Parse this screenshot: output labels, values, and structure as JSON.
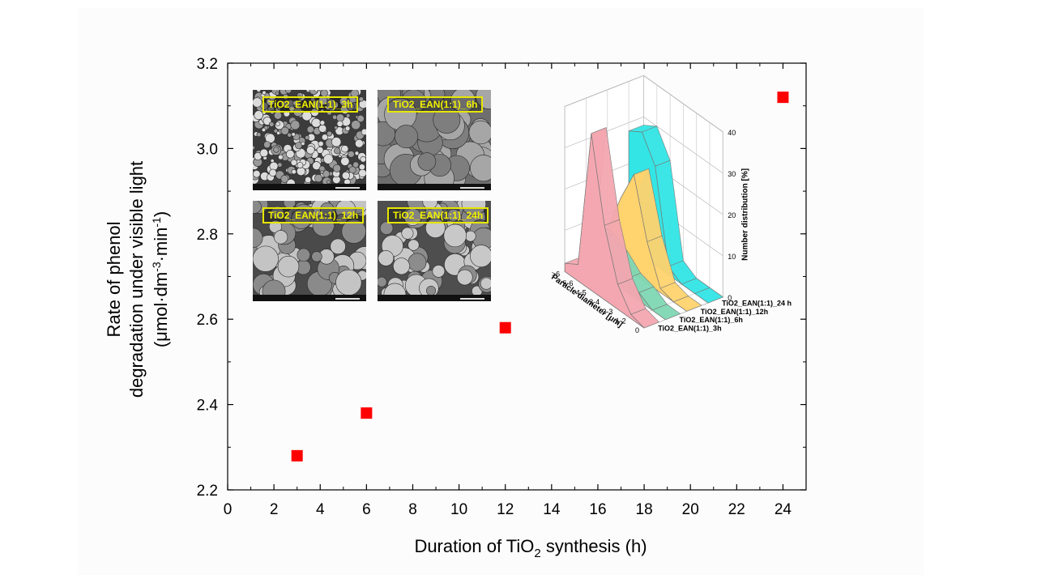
{
  "chart_data": [
    {
      "type": "scatter",
      "title": "",
      "xlabel": "Duration of TiO",
      "xlabel_sub": "2",
      "xlabel_tail": " synthesis (h)",
      "ylabel_line1": "Rate of phenol",
      "ylabel_line2": "degradation under visible light",
      "ylabel_line3_a": "(μmol·dm",
      "ylabel_line3_sup1": "-3",
      "ylabel_line3_b": "·min",
      "ylabel_line3_sup2": "-1",
      "ylabel_line3_c": ")",
      "xlim": [
        0,
        25
      ],
      "ylim": [
        2.2,
        3.2
      ],
      "xticks": [
        "0",
        "2",
        "4",
        "6",
        "8",
        "10",
        "12",
        "14",
        "16",
        "18",
        "20",
        "22",
        "24"
      ],
      "yticks": [
        "2.2",
        "2.4",
        "2.6",
        "2.8",
        "3.0",
        "3.2"
      ],
      "marker_color": "#ff0000",
      "series": [
        {
          "x": [
            3,
            6,
            12,
            24
          ],
          "y": [
            2.28,
            2.38,
            2.58,
            3.12
          ]
        }
      ]
    },
    {
      "type": "bar",
      "subtype": "3d-area",
      "zlabel": "Number distribution [%]",
      "xlabel": "Particle diameter [μm]",
      "categories": [
        "0",
        "1-2",
        "2-3",
        "3-4",
        "4-5",
        "5-6",
        ">6"
      ],
      "zticks": [
        "0",
        "10",
        "20",
        "30",
        "40"
      ],
      "zlim": [
        0,
        40
      ],
      "series": [
        {
          "name": "TiO2_EAN(1:1)_3h",
          "color": "#f4a7b0",
          "values": [
            0,
            1,
            6,
            18,
            38,
            4,
            2
          ]
        },
        {
          "name": "TiO2_EAN(1:1)_6h",
          "color": "#7fd7b4",
          "values": [
            0,
            0,
            2,
            3,
            6,
            8,
            8
          ]
        },
        {
          "name": "TiO2_EAN(1:1)_12h",
          "color": "#ffd36e",
          "values": [
            0,
            0,
            1,
            10,
            24,
            16,
            6
          ]
        },
        {
          "name": "TiO2_EAN(1:1)_24 h",
          "color": "#33e5e5",
          "values": [
            0,
            0,
            0,
            2,
            24,
            30,
            28
          ]
        }
      ]
    }
  ],
  "sem_images": [
    {
      "label": "TiO2_EAN(1:1)_3h"
    },
    {
      "label": "TiO2_EAN(1:1)_6h"
    },
    {
      "label": "TiO2_EAN(1:1)_12h"
    },
    {
      "label": "TiO2_EAN(1:1)_24h"
    }
  ]
}
